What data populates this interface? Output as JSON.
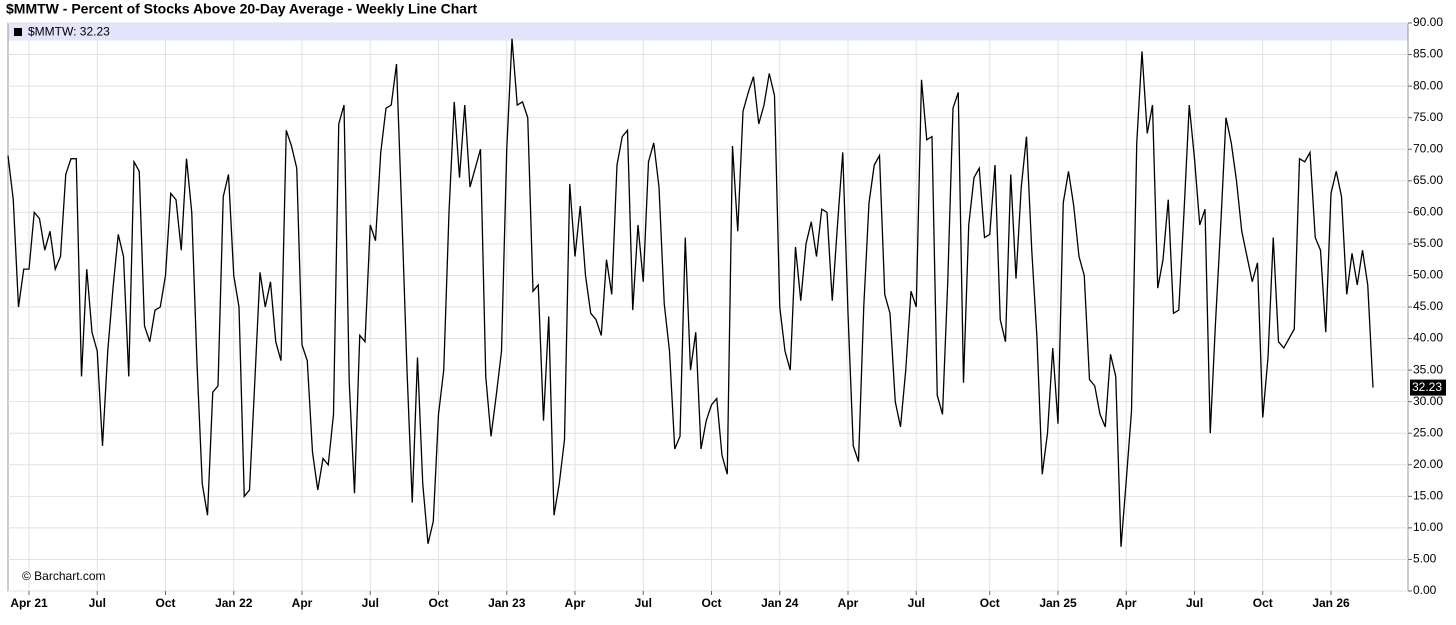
{
  "chart_data": {
    "type": "line",
    "title": "$MMTW - Percent of Stocks Above 20-Day Average - Weekly Line Chart",
    "legend_text": "$MMTW: 32.23",
    "credit": "© Barchart.com",
    "grid": true,
    "ylim": [
      0,
      90
    ],
    "yticks": [
      {
        "value": 0,
        "label": "0.00"
      },
      {
        "value": 5,
        "label": "5.00"
      },
      {
        "value": 10,
        "label": "10.00"
      },
      {
        "value": 15,
        "label": "15.00"
      },
      {
        "value": 20,
        "label": "20.00"
      },
      {
        "value": 25,
        "label": "25.00"
      },
      {
        "value": 30,
        "label": "30.00"
      },
      {
        "value": 35,
        "label": "35.00"
      },
      {
        "value": 40,
        "label": "40.00"
      },
      {
        "value": 45,
        "label": "45.00"
      },
      {
        "value": 50,
        "label": "50.00"
      },
      {
        "value": 55,
        "label": "55.00"
      },
      {
        "value": 60,
        "label": "60.00"
      },
      {
        "value": 65,
        "label": "65.00"
      },
      {
        "value": 70,
        "label": "70.00"
      },
      {
        "value": 75,
        "label": "75.00"
      },
      {
        "value": 80,
        "label": "80.00"
      },
      {
        "value": 85,
        "label": "85.00"
      },
      {
        "value": 90,
        "label": "90.00"
      }
    ],
    "categories": [
      null,
      null,
      null,
      null,
      "Apr 21",
      null,
      null,
      null,
      null,
      null,
      null,
      null,
      null,
      null,
      null,
      null,
      null,
      "Jul",
      null,
      null,
      null,
      null,
      null,
      null,
      null,
      null,
      null,
      null,
      null,
      null,
      "Oct",
      null,
      null,
      null,
      null,
      null,
      null,
      null,
      null,
      null,
      null,
      null,
      null,
      "Jan 22",
      null,
      null,
      null,
      null,
      null,
      null,
      null,
      null,
      null,
      null,
      null,
      null,
      "Apr",
      null,
      null,
      null,
      null,
      null,
      null,
      null,
      null,
      null,
      null,
      null,
      null,
      "Jul",
      null,
      null,
      null,
      null,
      null,
      null,
      null,
      null,
      null,
      null,
      null,
      null,
      "Oct",
      null,
      null,
      null,
      null,
      null,
      null,
      null,
      null,
      null,
      null,
      null,
      null,
      "Jan 23",
      null,
      null,
      null,
      null,
      null,
      null,
      null,
      null,
      null,
      null,
      null,
      null,
      "Apr",
      null,
      null,
      null,
      null,
      null,
      null,
      null,
      null,
      null,
      null,
      null,
      null,
      "Jul",
      null,
      null,
      null,
      null,
      null,
      null,
      null,
      null,
      null,
      null,
      null,
      null,
      "Oct",
      null,
      null,
      null,
      null,
      null,
      null,
      null,
      null,
      null,
      null,
      null,
      null,
      "Jan 24",
      null,
      null,
      null,
      null,
      null,
      null,
      null,
      null,
      null,
      null,
      null,
      null,
      "Apr",
      null,
      null,
      null,
      null,
      null,
      null,
      null,
      null,
      null,
      null,
      null,
      null,
      "Jul",
      null,
      null,
      null,
      null,
      null,
      null,
      null,
      null,
      null,
      null,
      null,
      null,
      null,
      "Oct",
      null,
      null,
      null,
      null,
      null,
      null,
      null,
      null,
      null,
      null,
      null,
      null,
      "Jan 25",
      null,
      null,
      null,
      null,
      null,
      null,
      null,
      null,
      null,
      null,
      null,
      null,
      "Apr",
      null,
      null,
      null,
      null,
      null,
      null,
      null,
      null,
      null,
      null,
      null,
      null,
      "Jul",
      null,
      null,
      null,
      null,
      null,
      null,
      null,
      null,
      null,
      null,
      null,
      null,
      "Oct",
      null,
      null,
      null,
      null,
      null,
      null,
      null,
      null,
      null,
      null,
      null,
      null,
      "Jan 26",
      null,
      null,
      null,
      null,
      null,
      null,
      null,
      null
    ],
    "series": [
      {
        "name": "$MMTW",
        "color": "#000000",
        "values": [
          69,
          62,
          45,
          51,
          51,
          60,
          59,
          54,
          57,
          51,
          53,
          66,
          68.5,
          68.5,
          34,
          51,
          41,
          38,
          23,
          38,
          48,
          56.5,
          53,
          34,
          68,
          66.5,
          42,
          39.5,
          44.5,
          45,
          50,
          63,
          62,
          54,
          68.5,
          60,
          36,
          17,
          12,
          31.5,
          32.5,
          62.5,
          66,
          50,
          45,
          15,
          16,
          33,
          50.5,
          45,
          49,
          39.5,
          36.5,
          73,
          70.5,
          67,
          39,
          36.5,
          22,
          16,
          21,
          20,
          28,
          74,
          77,
          33,
          15.5,
          40.5,
          39.5,
          58,
          55.5,
          69.5,
          76.5,
          77,
          83.5,
          60,
          35,
          14,
          37,
          17,
          7.5,
          11,
          28,
          35,
          60,
          77.5,
          65.5,
          77,
          64,
          67,
          70,
          34,
          24.5,
          31,
          38,
          70,
          87.5,
          77,
          77.5,
          75,
          47.5,
          48.5,
          27,
          43.5,
          12,
          17,
          24,
          64.5,
          53,
          61,
          50,
          44,
          43,
          40.5,
          52.5,
          47,
          67.5,
          72,
          73,
          44.5,
          58,
          49,
          68,
          71,
          64,
          45.5,
          38,
          22.5,
          24.5,
          56,
          35,
          41,
          22.5,
          27,
          29.5,
          30.5,
          21.5,
          18.5,
          70.5,
          57,
          76,
          79,
          81.5,
          74,
          77,
          82,
          78.5,
          45,
          38,
          35,
          54.5,
          46,
          55,
          58.5,
          53,
          60.5,
          60,
          46,
          58,
          69.5,
          44,
          23,
          20.5,
          45,
          61.5,
          67.5,
          69,
          47,
          44,
          30,
          26,
          35,
          47.5,
          45,
          81,
          71.5,
          72,
          31,
          28,
          49,
          76.5,
          79,
          33,
          58,
          65.5,
          67,
          56,
          56.5,
          67.5,
          43,
          39.5,
          66,
          49.5,
          64,
          72,
          54,
          40,
          18.5,
          25,
          38.5,
          26.5,
          61.5,
          66.5,
          61,
          53,
          50,
          33.5,
          32.5,
          28,
          26,
          37.5,
          34,
          7,
          17.5,
          28.5,
          71,
          85.5,
          72.5,
          77,
          48,
          52.5,
          62,
          44,
          44.5,
          60,
          77,
          68.5,
          58,
          60.5,
          25,
          42.5,
          58,
          75,
          71,
          65,
          57,
          53,
          49,
          52,
          27.5,
          37,
          56,
          39.5,
          38.5,
          40,
          41.5,
          68.5,
          68,
          69.5,
          56,
          54,
          41,
          63,
          66.5,
          62.5,
          47,
          53.5,
          48.5,
          54,
          48.5,
          32.23
        ]
      }
    ]
  }
}
